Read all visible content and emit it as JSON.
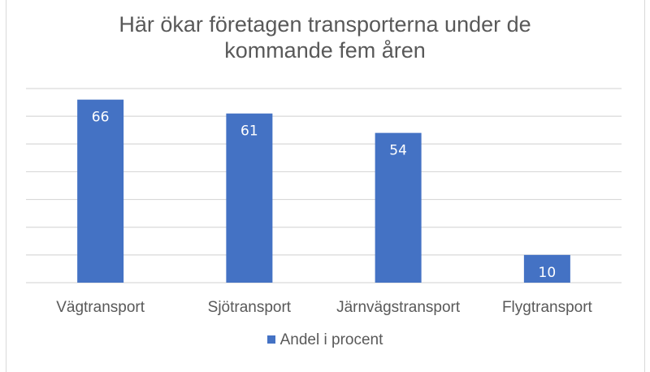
{
  "chart_data": {
    "type": "bar",
    "title": "Här ökar företagen transporterna under de kommande fem åren",
    "title_lines": [
      "Här ökar företagen transporterna under de",
      "kommande fem åren"
    ],
    "categories": [
      "Vägtransport",
      "Sjötransport",
      "Järnvägstransport",
      "Flygtransport"
    ],
    "series": [
      {
        "name": "Andel i procent",
        "values": [
          66,
          61,
          54,
          10
        ],
        "color": "#4472c4"
      }
    ],
    "xlabel": "",
    "ylabel": "",
    "ylim": [
      0,
      70
    ],
    "grid": true,
    "grid_step": 10,
    "legend": "bottom"
  }
}
